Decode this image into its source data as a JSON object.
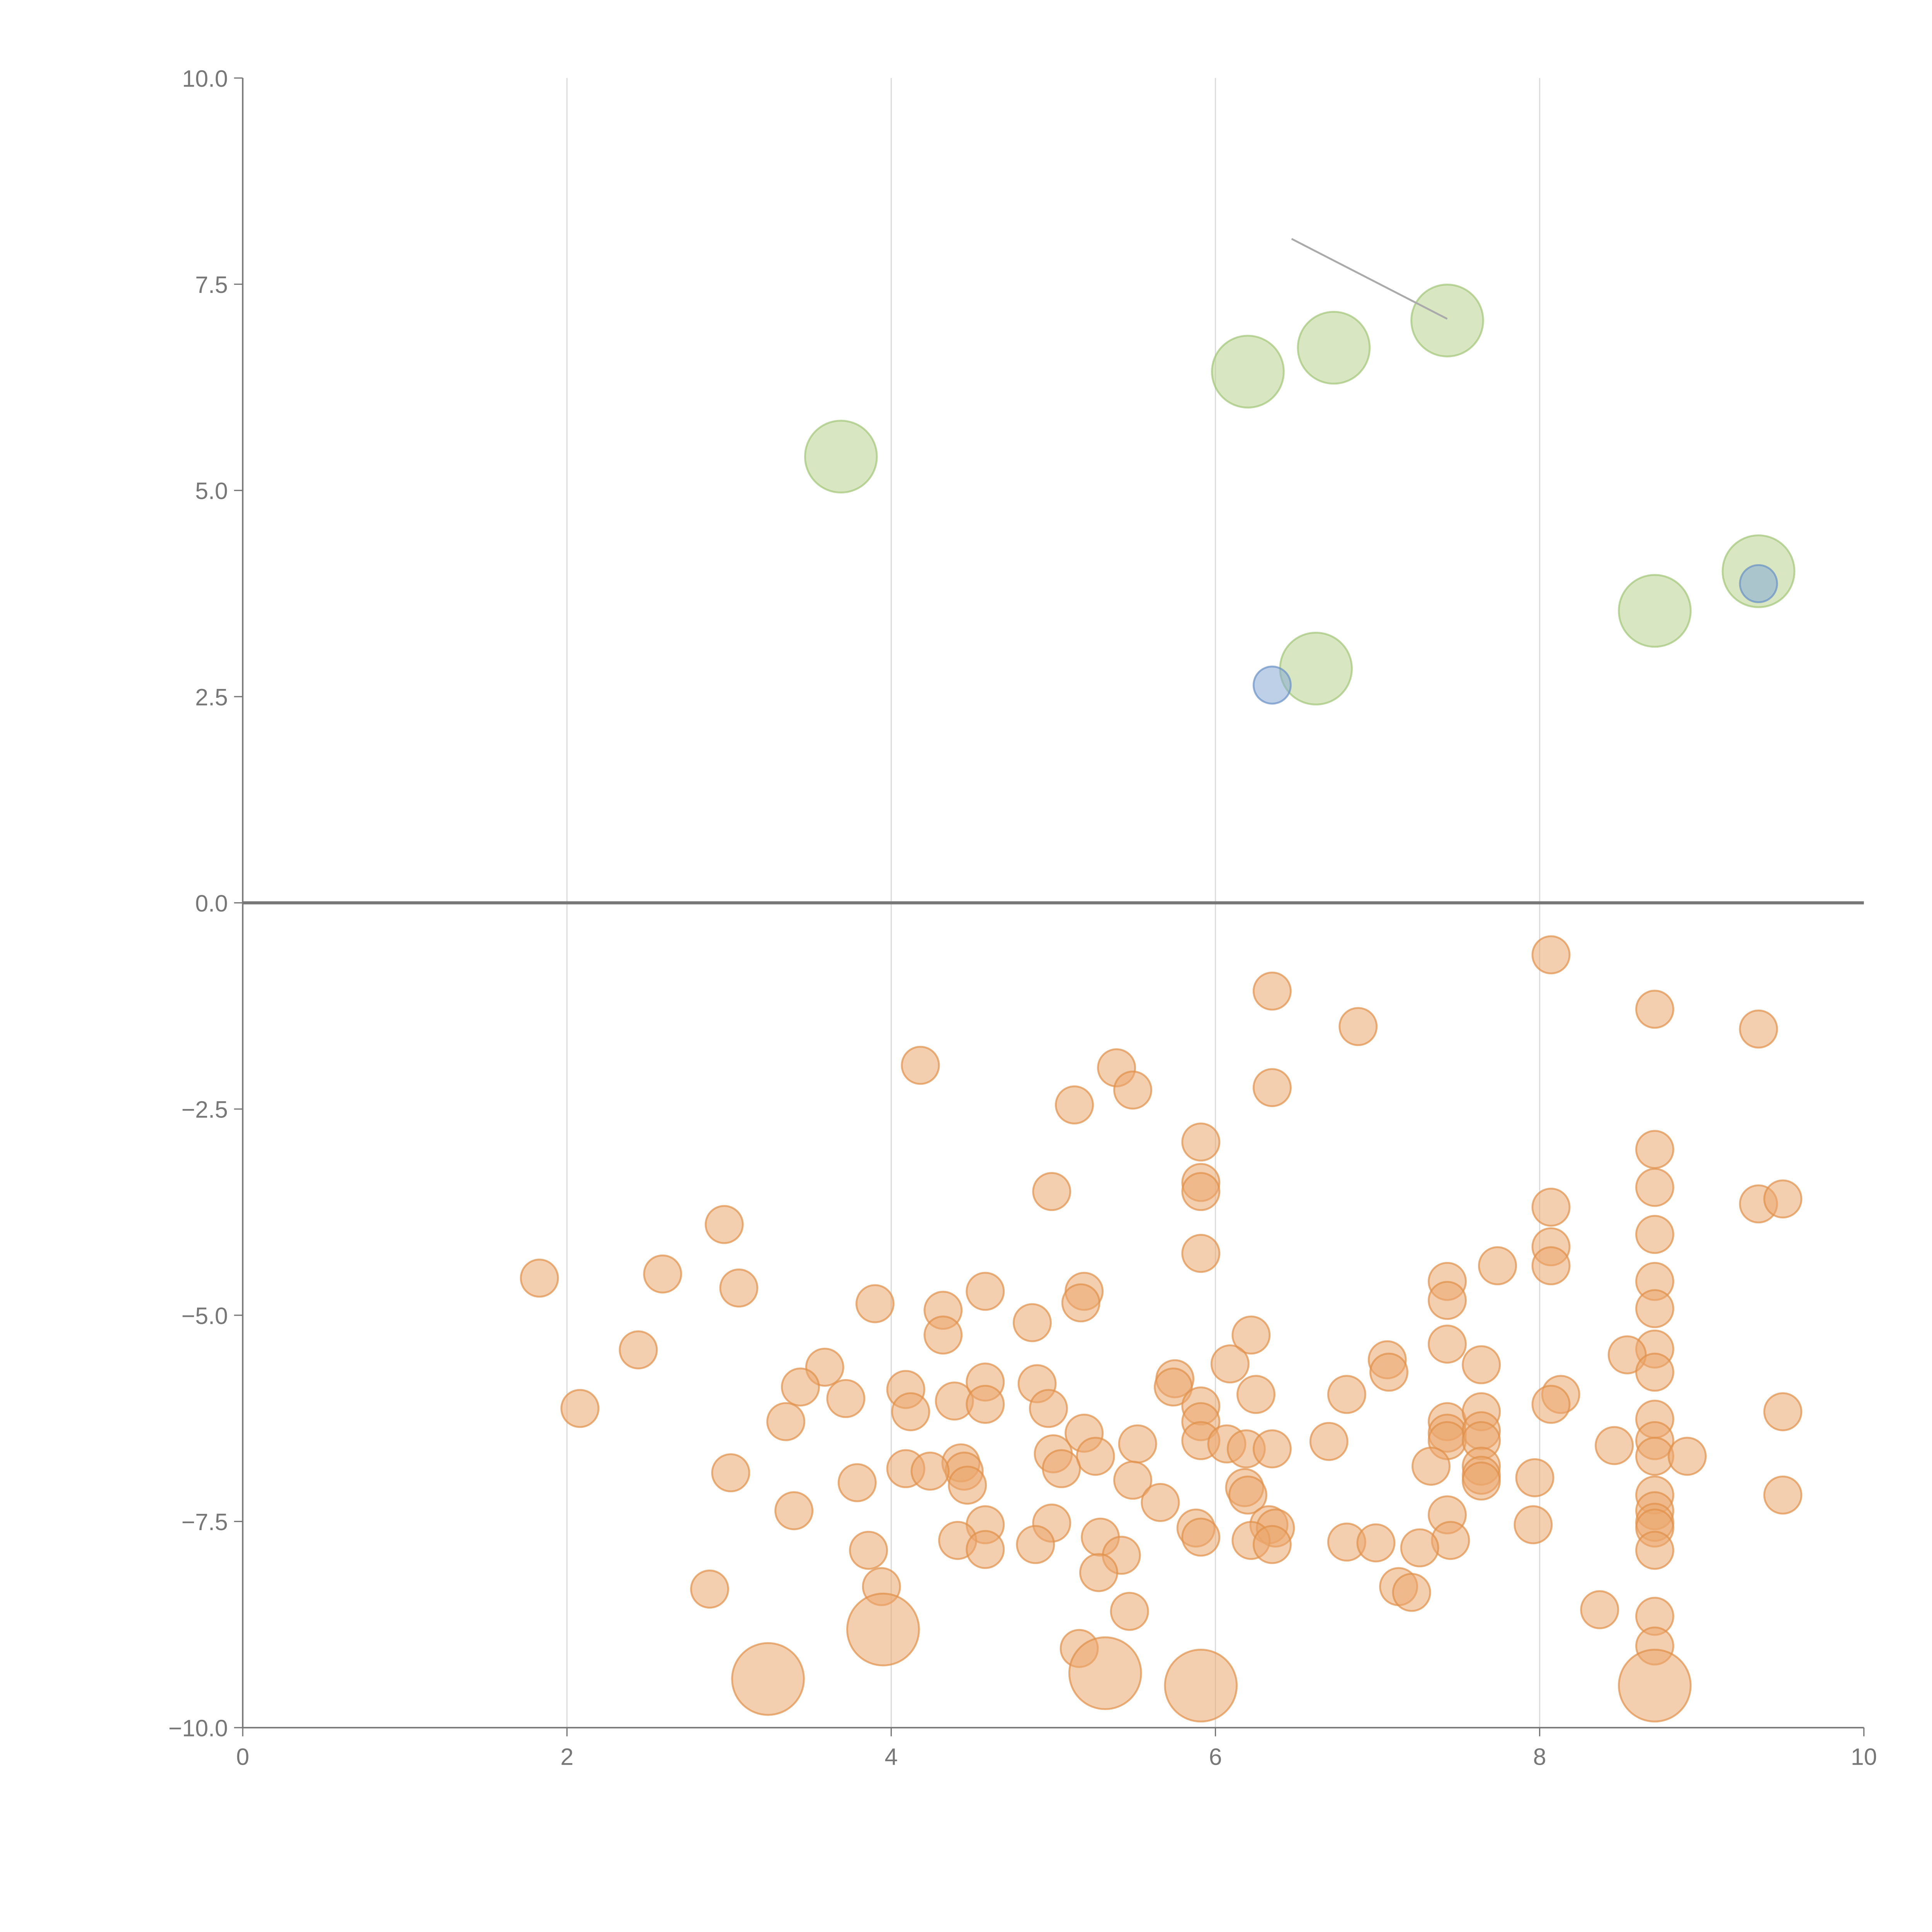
{
  "chart_data": {
    "type": "scatter",
    "title": "",
    "xlabel": "",
    "ylabel": "",
    "xlim": [
      0,
      10
    ],
    "ylim": [
      -10,
      10
    ],
    "grid": "vertical",
    "legend": "none",
    "x_ticks": [
      "0",
      "2",
      "4",
      "6",
      "8",
      "10"
    ],
    "x_tick_values": [
      0,
      2,
      4,
      6,
      8,
      10
    ],
    "y_ticks": [
      "10.0",
      "7.5",
      "5.0",
      "2.5",
      "0.0",
      "−2.5",
      "−5.0",
      "−7.5",
      "−10.0"
    ],
    "y_tick_values": [
      10,
      7.5,
      5,
      2.5,
      0,
      -2.5,
      -5,
      -7.5,
      -10
    ],
    "annotation_line": {
      "from": [
        6.47,
        8.05
      ],
      "to": [
        7.43,
        7.08
      ]
    },
    "series": [
      {
        "name": "green",
        "color": "#b8d38f",
        "stroke": "#a3c477",
        "size": 4,
        "points": [
          [
            3.69,
            5.41
          ],
          [
            6.2,
            6.44
          ],
          [
            6.73,
            6.73
          ],
          [
            7.43,
            7.06
          ],
          [
            6.62,
            2.84
          ],
          [
            8.71,
            3.54
          ],
          [
            9.35,
            4.02
          ]
        ]
      },
      {
        "name": "blue",
        "color": "#87a9d6",
        "stroke": "#6a90c4",
        "size": 1,
        "points": [
          [
            6.35,
            2.64
          ],
          [
            9.35,
            3.87
          ]
        ]
      },
      {
        "name": "orange-large",
        "color": "#eba86d",
        "stroke": "#e0904a",
        "size": 4,
        "points": [
          [
            3.24,
            -9.41
          ],
          [
            3.95,
            -8.81
          ],
          [
            5.32,
            -9.34
          ],
          [
            5.91,
            -9.49
          ],
          [
            8.71,
            -9.49
          ]
        ]
      },
      {
        "name": "orange",
        "color": "#eba86d",
        "stroke": "#e0904a",
        "size": 1,
        "points": [
          [
            8.07,
            -0.63
          ],
          [
            6.35,
            -1.07
          ],
          [
            6.88,
            -1.5
          ],
          [
            8.71,
            -1.29
          ],
          [
            9.35,
            -1.53
          ],
          [
            4.18,
            -1.97
          ],
          [
            5.39,
            -2.0
          ],
          [
            5.49,
            -2.27
          ],
          [
            6.35,
            -2.24
          ],
          [
            5.13,
            -2.45
          ],
          [
            5.91,
            -2.9
          ],
          [
            8.71,
            -2.99
          ],
          [
            4.99,
            -3.5
          ],
          [
            5.91,
            -3.39
          ],
          [
            5.91,
            -3.5
          ],
          [
            8.71,
            -3.45
          ],
          [
            2.97,
            -3.9
          ],
          [
            8.07,
            -3.69
          ],
          [
            9.35,
            -3.65
          ],
          [
            9.5,
            -3.59
          ],
          [
            8.71,
            -4.02
          ],
          [
            8.07,
            -4.17
          ],
          [
            8.07,
            -4.4
          ],
          [
            7.74,
            -4.4
          ],
          [
            5.91,
            -4.25
          ],
          [
            1.83,
            -4.55
          ],
          [
            2.59,
            -4.5
          ],
          [
            3.06,
            -4.67
          ],
          [
            7.43,
            -4.59
          ],
          [
            7.43,
            -4.82
          ],
          [
            8.71,
            -4.59
          ],
          [
            8.71,
            -4.92
          ],
          [
            4.58,
            -4.71
          ],
          [
            5.19,
            -4.71
          ],
          [
            5.17,
            -4.85
          ],
          [
            3.9,
            -4.86
          ],
          [
            4.32,
            -4.94
          ],
          [
            4.87,
            -5.09
          ],
          [
            4.32,
            -5.24
          ],
          [
            6.22,
            -5.24
          ],
          [
            2.44,
            -5.42
          ],
          [
            7.43,
            -5.35
          ],
          [
            8.71,
            -5.41
          ],
          [
            8.54,
            -5.48
          ],
          [
            6.09,
            -5.59
          ],
          [
            7.06,
            -5.54
          ],
          [
            7.07,
            -5.69
          ],
          [
            7.64,
            -5.6
          ],
          [
            8.71,
            -5.69
          ],
          [
            3.59,
            -5.63
          ],
          [
            3.44,
            -5.87
          ],
          [
            3.72,
            -6.01
          ],
          [
            4.09,
            -5.9
          ],
          [
            4.12,
            -6.17
          ],
          [
            4.39,
            -6.04
          ],
          [
            4.58,
            -5.81
          ],
          [
            4.58,
            -6.08
          ],
          [
            4.9,
            -5.83
          ],
          [
            4.97,
            -6.13
          ],
          [
            5.75,
            -5.77
          ],
          [
            5.74,
            -5.87
          ],
          [
            6.25,
            -5.96
          ],
          [
            6.81,
            -5.96
          ],
          [
            8.13,
            -5.96
          ],
          [
            8.07,
            -6.08
          ],
          [
            2.08,
            -6.13
          ],
          [
            3.35,
            -6.29
          ],
          [
            5.91,
            -6.1
          ],
          [
            5.91,
            -6.29
          ],
          [
            5.91,
            -6.52
          ],
          [
            7.43,
            -6.29
          ],
          [
            7.43,
            -6.43
          ],
          [
            7.43,
            -6.52
          ],
          [
            7.64,
            -6.17
          ],
          [
            7.64,
            -6.4
          ],
          [
            7.64,
            -6.52
          ],
          [
            8.71,
            -6.26
          ],
          [
            8.71,
            -6.52
          ],
          [
            8.71,
            -6.71
          ],
          [
            9.5,
            -6.17
          ],
          [
            5.19,
            -6.43
          ],
          [
            6.07,
            -6.56
          ],
          [
            6.19,
            -6.62
          ],
          [
            6.35,
            -6.62
          ],
          [
            5.52,
            -6.56
          ],
          [
            6.7,
            -6.53
          ],
          [
            8.46,
            -6.58
          ],
          [
            8.91,
            -6.71
          ],
          [
            5.0,
            -6.68
          ],
          [
            5.26,
            -6.71
          ],
          [
            5.05,
            -6.86
          ],
          [
            4.43,
            -6.79
          ],
          [
            4.45,
            -6.89
          ],
          [
            4.47,
            -7.06
          ],
          [
            4.09,
            -6.86
          ],
          [
            4.24,
            -6.89
          ],
          [
            3.01,
            -6.91
          ],
          [
            7.33,
            -6.83
          ],
          [
            7.64,
            -6.83
          ],
          [
            7.64,
            -6.94
          ],
          [
            7.64,
            -7.01
          ],
          [
            7.97,
            -6.97
          ],
          [
            3.79,
            -7.03
          ],
          [
            5.49,
            -7.0
          ],
          [
            6.18,
            -7.09
          ],
          [
            6.2,
            -7.18
          ],
          [
            5.66,
            -7.27
          ],
          [
            9.5,
            -7.18
          ],
          [
            8.71,
            -7.18
          ],
          [
            8.71,
            -7.37
          ],
          [
            8.71,
            -7.51
          ],
          [
            8.71,
            -7.58
          ],
          [
            3.4,
            -7.37
          ],
          [
            7.43,
            -7.42
          ],
          [
            4.58,
            -7.54
          ],
          [
            4.99,
            -7.52
          ],
          [
            6.33,
            -7.54
          ],
          [
            6.37,
            -7.58
          ],
          [
            5.88,
            -7.58
          ],
          [
            7.96,
            -7.54
          ],
          [
            5.91,
            -7.69
          ],
          [
            5.29,
            -7.69
          ],
          [
            4.41,
            -7.73
          ],
          [
            4.89,
            -7.78
          ],
          [
            6.22,
            -7.73
          ],
          [
            6.35,
            -7.78
          ],
          [
            6.81,
            -7.75
          ],
          [
            6.99,
            -7.76
          ],
          [
            7.45,
            -7.73
          ],
          [
            7.26,
            -7.82
          ],
          [
            4.58,
            -7.84
          ],
          [
            3.86,
            -7.85
          ],
          [
            5.42,
            -7.91
          ],
          [
            8.71,
            -7.85
          ],
          [
            5.28,
            -8.12
          ],
          [
            3.94,
            -8.29
          ],
          [
            2.88,
            -8.32
          ],
          [
            7.13,
            -8.29
          ],
          [
            7.21,
            -8.36
          ],
          [
            5.47,
            -8.59
          ],
          [
            8.37,
            -8.57
          ],
          [
            8.71,
            -8.65
          ],
          [
            5.16,
            -9.04
          ],
          [
            8.71,
            -9.01
          ]
        ]
      }
    ]
  }
}
